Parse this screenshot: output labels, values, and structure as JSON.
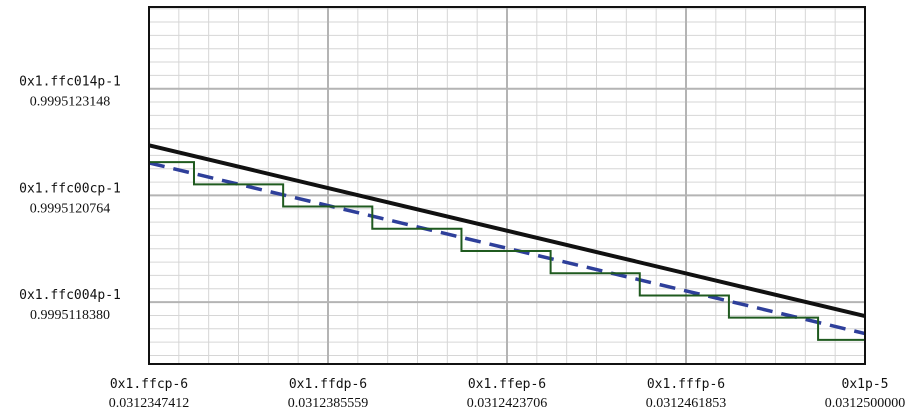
{
  "chart_data": {
    "type": "line",
    "title": "",
    "xlabel": "",
    "ylabel": "",
    "x_ticks": [
      {
        "hex": "0x1.ffcp-6",
        "dec": "0.0312347412",
        "value": 0.0312347412
      },
      {
        "hex": "0x1.ffdp-6",
        "dec": "0.0312385559",
        "value": 0.0312385559
      },
      {
        "hex": "0x1.ffep-6",
        "dec": "0.0312423706",
        "value": 0.0312423706
      },
      {
        "hex": "0x1.fffp-6",
        "dec": "0.0312461853",
        "value": 0.0312461853
      },
      {
        "hex": "0x1p-5",
        "dec": "0.0312500000",
        "value": 0.03125
      }
    ],
    "y_ticks": [
      {
        "hex": "0x1.ffc004p-1",
        "dec": "0.9995118380",
        "value": 0.999511838
      },
      {
        "hex": "0x1.ffc00cp-1",
        "dec": "0.9995120764",
        "value": 0.9995120764
      },
      {
        "hex": "0x1.ffc014p-1",
        "dec": "0.9995123148",
        "value": 0.9995123148
      }
    ],
    "xlim": [
      0.0312347412,
      0.03125
    ],
    "ylim": [
      0.9995116997,
      0.9995124974
    ],
    "grid": true,
    "minor_grid": true,
    "series": [
      {
        "style": "solid",
        "color": "#111111",
        "x": [
          0.0312347412,
          0.03125
        ],
        "y": [
          0.9995121883,
          0.9995118067
        ]
      },
      {
        "style": "dashed",
        "color": "#2e3f9a",
        "x": [
          0.0312347412,
          0.03125
        ],
        "y": [
          0.9995121491,
          0.9995117677
        ]
      },
      {
        "style": "step",
        "color": "#1f5a1f",
        "x": [
          0.0312347412,
          0.0312357,
          0.0312357,
          0.0312376,
          0.0312376,
          0.0312395,
          0.0312395,
          0.0312414,
          0.0312414,
          0.0312433,
          0.0312433,
          0.0312452,
          0.0312452,
          0.0312471,
          0.0312471,
          0.031249,
          0.031249,
          0.03125
        ],
        "y": [
          0.9995121507,
          0.9995121507,
          0.9995121011,
          0.9995121011,
          0.9995120515,
          0.9995120515,
          0.9995120018,
          0.9995120018,
          0.9995119522,
          0.9995119522,
          0.9995119025,
          0.9995119025,
          0.9995118529,
          0.9995118529,
          0.9995118033,
          0.9995118033,
          0.9995117536,
          0.9995117536
        ]
      }
    ]
  }
}
